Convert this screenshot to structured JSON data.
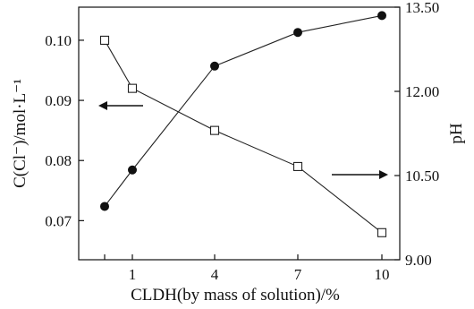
{
  "chart_data": {
    "type": "line",
    "xlabel": "CLDH(by mass of solution)/%",
    "ylabel_left": "C(Cl⁻)/mol·L⁻¹",
    "ylabel_right": "pH",
    "categories": [
      "0",
      "1",
      "4",
      "7",
      "10"
    ],
    "x_tick_labels": [
      "1",
      "4",
      "7",
      "10"
    ],
    "y_left": {
      "lim": [
        0.0635,
        0.1055
      ],
      "ticks": [
        "0.07",
        "0.08",
        "0.09",
        "0.10"
      ]
    },
    "y_right": {
      "lim": [
        9.0,
        13.5
      ],
      "ticks": [
        "9.00",
        "10.50",
        "12.00",
        "13.50"
      ]
    },
    "series": [
      {
        "axis": "left",
        "marker": "open-square",
        "values": [
          0.1,
          0.092,
          0.085,
          0.079,
          0.068
        ]
      },
      {
        "axis": "right",
        "marker": "filled-circle",
        "values": [
          9.95,
          10.6,
          12.45,
          13.05,
          13.35
        ]
      }
    ],
    "annotations": [
      {
        "type": "arrow",
        "points_to": "left-axis"
      },
      {
        "type": "arrow",
        "points_to": "right-axis"
      }
    ],
    "grid": false,
    "legend": "none"
  }
}
